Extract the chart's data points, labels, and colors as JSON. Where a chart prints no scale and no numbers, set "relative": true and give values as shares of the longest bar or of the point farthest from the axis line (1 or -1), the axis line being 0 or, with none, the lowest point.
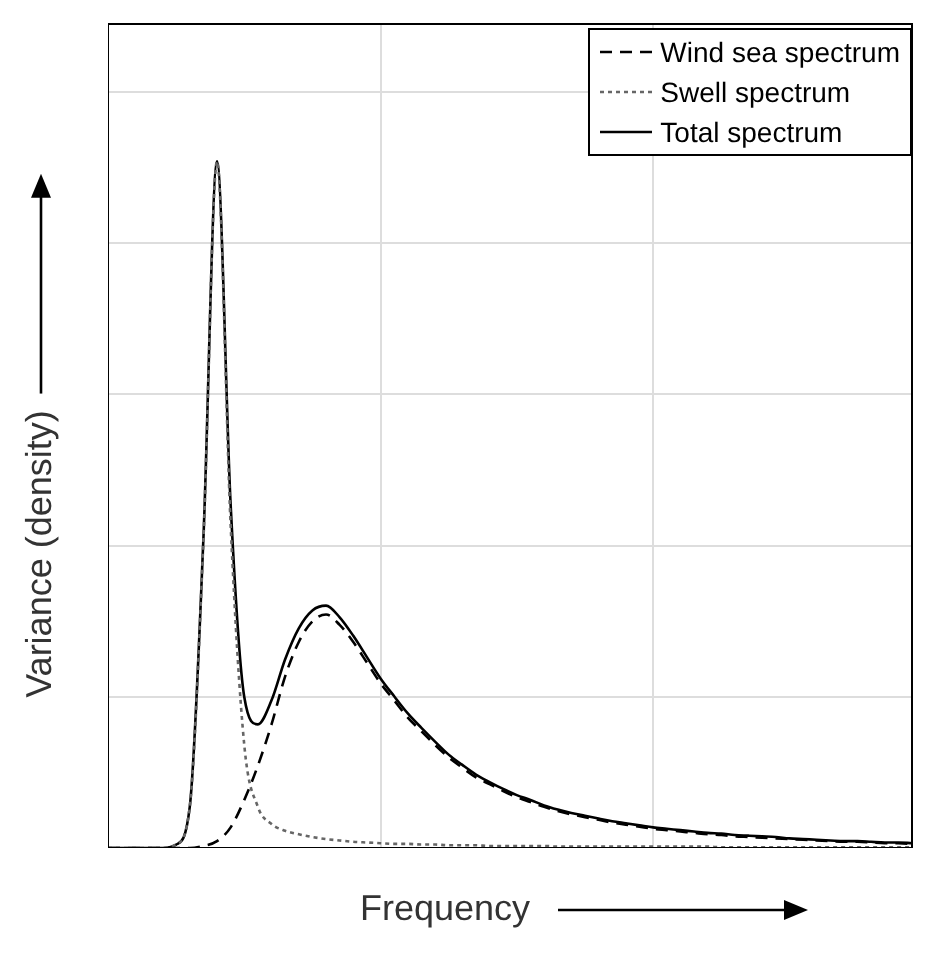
{
  "chart_data": {
    "type": "line",
    "relative": true,
    "xlabel": "Frequency",
    "ylabel": "Variance (density)",
    "categories": [
      null,
      null,
      null,
      null,
      null,
      null,
      null,
      null,
      null,
      null,
      null,
      null,
      null,
      null,
      null,
      null,
      null,
      null,
      null,
      null,
      null,
      null,
      null,
      null,
      null,
      null,
      null,
      null,
      null,
      null,
      null,
      null,
      null,
      null,
      null,
      null,
      null,
      null,
      null,
      null,
      null,
      null,
      null,
      null,
      null,
      null,
      null,
      null,
      null,
      null,
      null,
      null,
      null,
      null,
      null,
      null,
      null,
      null,
      null,
      null
    ],
    "grid": true,
    "legend": "top right",
    "marker": "none",
    "tick_labels": false,
    "series": [
      {
        "name": "Wind sea spectrum",
        "color": "#000000",
        "line_style": "dashed",
        "values": [
          0,
          0,
          0,
          0,
          0,
          0,
          0,
          0.003,
          0.01,
          0.03,
          0.07,
          0.12,
          0.18,
          0.25,
          0.3,
          0.33,
          0.34,
          0.325,
          0.3,
          0.27,
          0.24,
          0.215,
          0.19,
          0.17,
          0.15,
          0.132,
          0.117,
          0.103,
          0.093,
          0.083,
          0.074,
          0.067,
          0.06,
          0.054,
          0.049,
          0.045,
          0.041,
          0.037,
          0.034,
          0.031,
          0.028,
          0.026,
          0.024,
          0.022,
          0.02,
          0.019,
          0.017,
          0.016,
          0.015,
          0.014,
          0.013,
          0.012,
          0.011,
          0.01,
          0.009,
          0.009,
          0.008,
          0.007,
          0.007,
          0.006
        ]
      },
      {
        "name": "Swell spectrum",
        "color": "#666666",
        "line_style": "dotted",
        "values": [
          0,
          0,
          0,
          0,
          0,
          0.005,
          0.06,
          0.447,
          1.0,
          0.47,
          0.15,
          0.06,
          0.035,
          0.025,
          0.02,
          0.016,
          0.013,
          0.011,
          0.009,
          0.008,
          0.007,
          0.006,
          0.006,
          0.005,
          0.005,
          0.004,
          0.004,
          0.004,
          0.003,
          0.003,
          0.003,
          0.003,
          0.003,
          0.002,
          0.002,
          0.002,
          0.002,
          0.002,
          0.002,
          0.002,
          0.002,
          0.002,
          0.002,
          0.002,
          0.002,
          0.001,
          0.001,
          0.001,
          0.001,
          0.001,
          0.001,
          0.001,
          0.001,
          0.001,
          0.001,
          0.001,
          0.001,
          0.001,
          0.001,
          0.001
        ]
      },
      {
        "name": "Total spectrum",
        "color": "#000000",
        "line_style": "solid",
        "values": [
          0,
          0,
          0,
          0,
          0,
          0.005,
          0.06,
          0.45,
          1.0,
          0.5,
          0.22,
          0.18,
          0.215,
          0.275,
          0.32,
          0.346,
          0.353,
          0.336,
          0.309,
          0.278,
          0.247,
          0.221,
          0.196,
          0.175,
          0.155,
          0.136,
          0.121,
          0.107,
          0.096,
          0.086,
          0.077,
          0.07,
          0.062,
          0.056,
          0.051,
          0.047,
          0.043,
          0.039,
          0.036,
          0.033,
          0.03,
          0.028,
          0.026,
          0.024,
          0.022,
          0.021,
          0.019,
          0.018,
          0.017,
          0.016,
          0.014,
          0.013,
          0.012,
          0.011,
          0.01,
          0.01,
          0.009,
          0.008,
          0.008,
          0.007
        ]
      }
    ]
  }
}
